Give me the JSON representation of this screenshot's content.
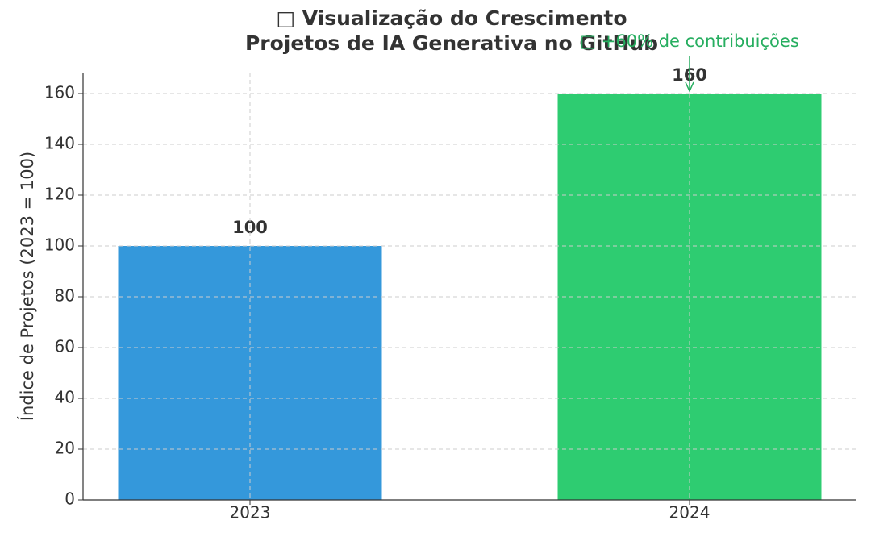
{
  "chart_data": {
    "type": "bar",
    "title": [
      "□ Visualização do Crescimento",
      "Projetos de IA Generativa no GitHub"
    ],
    "ylabel": "Índice de Projetos (2023 = 100)",
    "categories": [
      "2023",
      "2024"
    ],
    "values": [
      100,
      160
    ],
    "colors": [
      "#3498db",
      "#2ecc71"
    ],
    "ylim": [
      0,
      168.25
    ],
    "yticks": [
      0,
      20,
      40,
      60,
      80,
      100,
      120,
      140,
      160
    ],
    "grid": true,
    "annotation": {
      "text": "□ +60% de contribuições",
      "color": "#27ae60"
    }
  }
}
